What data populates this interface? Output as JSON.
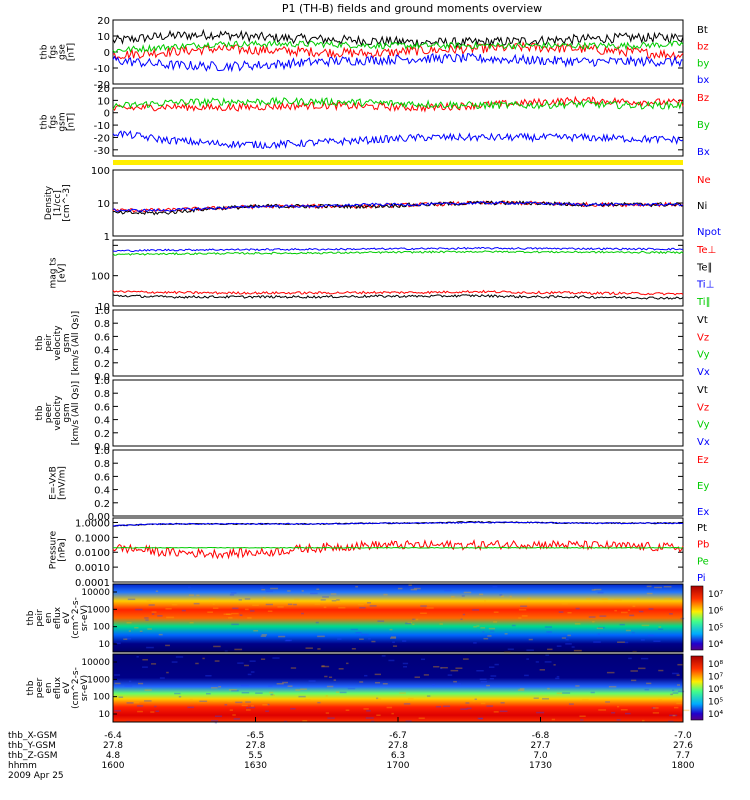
{
  "title": "P1 (TH-B) fields and ground moments overview",
  "chart_data": [
    {
      "id": "fgs_gse",
      "type": "line",
      "ylabel_lines": [
        "thb",
        "fgs",
        "gse",
        "[nT]"
      ],
      "ylim": [
        -20,
        20
      ],
      "ticks": [
        20,
        10,
        0,
        -10,
        -20
      ],
      "series": [
        {
          "name": "Bt",
          "color": "#000000",
          "base": [
            7,
            10,
            11,
            9,
            8,
            7,
            6,
            6,
            7,
            8,
            9,
            9
          ],
          "noise": 3
        },
        {
          "name": "bz",
          "color": "#ff0000",
          "base": [
            -2,
            0,
            2,
            1,
            0,
            -1,
            1,
            2,
            3,
            2,
            0,
            -2
          ],
          "noise": 3
        },
        {
          "name": "by",
          "color": "#00cc00",
          "base": [
            1,
            3,
            5,
            5,
            5,
            4,
            4,
            4,
            4,
            4,
            4,
            5
          ],
          "noise": 2
        },
        {
          "name": "bx",
          "color": "#0000ff",
          "base": [
            -5,
            -8,
            -9,
            -8,
            -6,
            -5,
            -4,
            -4,
            -5,
            -6,
            -6,
            -6
          ],
          "noise": 3
        }
      ]
    },
    {
      "id": "fgs_gsm",
      "type": "line",
      "ylabel_lines": [
        "thb",
        "fgs",
        "gsm",
        "[nT]"
      ],
      "ylim": [
        -35,
        20
      ],
      "ticks": [
        20,
        10,
        0,
        -10,
        -20,
        -30
      ],
      "series": [
        {
          "name": "Bz",
          "color": "#ff0000",
          "base": [
            3,
            5,
            4,
            5,
            6,
            5,
            4,
            6,
            8,
            10,
            9,
            8
          ],
          "noise": 3
        },
        {
          "name": "By",
          "color": "#00cc00",
          "base": [
            5,
            8,
            9,
            9,
            9,
            8,
            7,
            6,
            6,
            7,
            6,
            6
          ],
          "noise": 3
        },
        {
          "name": "Bx",
          "color": "#0000ff",
          "base": [
            -16,
            -22,
            -25,
            -26,
            -24,
            -22,
            -20,
            -20,
            -20,
            -20,
            -21,
            -22
          ],
          "noise": 3
        }
      ]
    },
    {
      "id": "density",
      "type": "line",
      "scale": "log",
      "ylabel_lines": [
        "Density",
        "[1/cc]",
        "[cm^-3]"
      ],
      "ylim": [
        1,
        100
      ],
      "ticks": [
        100,
        10,
        1
      ],
      "tick_labels": [
        "100",
        "10",
        "1"
      ],
      "series": [
        {
          "name": "Ne",
          "color": "#ff0000",
          "base": [
            6,
            6,
            7,
            8,
            8,
            8,
            9,
            10,
            10,
            9,
            9,
            9
          ],
          "noise": 0.06
        },
        {
          "name": "Ni",
          "color": "#000000",
          "base": [
            5,
            5,
            7,
            8,
            8,
            8,
            9,
            10,
            10,
            9,
            9,
            9
          ],
          "noise": 0.06
        },
        {
          "name": "Npot",
          "color": "#0000ff",
          "base": [
            6,
            6,
            7,
            8,
            8,
            9,
            9,
            10,
            10,
            9,
            9,
            9
          ],
          "noise": 0.04
        }
      ]
    },
    {
      "id": "temperature",
      "type": "line",
      "scale": "log",
      "ylabel_lines": [
        "mag ts",
        "[eV]"
      ],
      "ylim": [
        10,
        1500
      ],
      "ticks": [
        1000,
        100,
        10
      ],
      "tick_labels": [
        "",
        "100",
        "10"
      ],
      "series": [
        {
          "name": "Te⊥",
          "color": "#ff0000",
          "base": [
            30,
            28,
            27,
            27,
            27,
            28,
            28,
            30,
            28,
            27,
            26,
            25
          ],
          "noise": 0.04
        },
        {
          "name": "Te∥",
          "color": "#000000",
          "base": [
            22,
            20,
            20,
            20,
            20,
            21,
            21,
            22,
            20,
            20,
            19,
            18
          ],
          "noise": 0.04
        },
        {
          "name": "Ti⊥",
          "color": "#0000ff",
          "base": [
            650,
            700,
            720,
            730,
            740,
            760,
            780,
            800,
            790,
            780,
            760,
            750
          ],
          "noise": 0.03
        },
        {
          "name": "Ti∥",
          "color": "#00cc00",
          "base": [
            500,
            520,
            540,
            550,
            560,
            580,
            600,
            620,
            610,
            600,
            590,
            580
          ],
          "noise": 0.03
        }
      ]
    },
    {
      "id": "peir_vel",
      "type": "line",
      "empty": true,
      "ylabel_lines": [
        "thb",
        "peir",
        "velocity",
        "gsm",
        "[km/s (All Qs)]"
      ],
      "ylim": [
        0,
        1
      ],
      "ticks": [
        1.0,
        0.8,
        0.6,
        0.4,
        0.2,
        0.0
      ],
      "tick_labels": [
        "1.0",
        "0.8",
        "0.6",
        "0.4",
        "0.2",
        "0.0"
      ],
      "series": [
        {
          "name": "Vt",
          "color": "#000000"
        },
        {
          "name": "Vz",
          "color": "#ff0000"
        },
        {
          "name": "Vy",
          "color": "#00cc00"
        },
        {
          "name": "Vx",
          "color": "#0000ff"
        }
      ]
    },
    {
      "id": "peer_vel",
      "type": "line",
      "empty": true,
      "ylabel_lines": [
        "thb",
        "peer",
        "velocity",
        "gsm",
        "[km/s (All Qs)]"
      ],
      "ylim": [
        0,
        1
      ],
      "ticks": [
        1.0,
        0.8,
        0.6,
        0.4,
        0.2,
        0.0
      ],
      "tick_labels": [
        "1.0",
        "0.8",
        "0.6",
        "0.4",
        "0.2",
        "0.0"
      ],
      "series": [
        {
          "name": "Vt",
          "color": "#000000"
        },
        {
          "name": "Vz",
          "color": "#ff0000"
        },
        {
          "name": "Vy",
          "color": "#00cc00"
        },
        {
          "name": "Vx",
          "color": "#0000ff"
        }
      ]
    },
    {
      "id": "efield",
      "type": "line",
      "empty": true,
      "ylabel_lines": [
        "E=-VxB",
        "[mV/m]"
      ],
      "ylim": [
        0,
        1
      ],
      "ticks": [
        1.0,
        0.8,
        0.6,
        0.4,
        0.2,
        0.0
      ],
      "tick_labels": [
        "1.0",
        "0.8",
        "0.6",
        "0.4",
        "0.2",
        "0.00"
      ],
      "series": [
        {
          "name": "Ez",
          "color": "#ff0000"
        },
        {
          "name": "Ey",
          "color": "#00cc00"
        },
        {
          "name": "Ex",
          "color": "#0000ff"
        }
      ]
    },
    {
      "id": "pressure",
      "type": "line",
      "scale": "log",
      "ylabel_lines": [
        "Pressure",
        "[nPa]"
      ],
      "ylim": [
        0.0001,
        2
      ],
      "ticks": [
        1,
        0.1,
        0.01,
        0.001,
        0.0001
      ],
      "tick_labels": [
        "1.0000",
        "0.1000",
        "0.0100",
        "0.0010",
        "0.0001"
      ],
      "series": [
        {
          "name": "Pt",
          "color": "#000000",
          "base": [
            0.6,
            0.8,
            0.8,
            0.8,
            0.8,
            0.9,
            0.9,
            1.1,
            1.0,
            0.9,
            0.9,
            0.9
          ],
          "noise": 0.04
        },
        {
          "name": "Pb",
          "color": "#ff0000",
          "base": [
            0.02,
            0.01,
            0.008,
            0.01,
            0.02,
            0.03,
            0.03,
            0.03,
            0.035,
            0.03,
            0.025,
            0.02
          ],
          "noise": 0.3
        },
        {
          "name": "Pe",
          "color": "#00cc00",
          "base": [
            0.02,
            0.02,
            0.02,
            0.02,
            0.02,
            0.02,
            0.02,
            0.02,
            0.02,
            0.02,
            0.02,
            0.02
          ],
          "noise": 0.02
        },
        {
          "name": "Pi",
          "color": "#0000ff",
          "base": [
            0.6,
            0.8,
            0.8,
            0.8,
            0.8,
            0.9,
            0.9,
            1.0,
            1.0,
            0.9,
            0.9,
            0.9
          ],
          "noise": 0.04
        }
      ]
    },
    {
      "id": "peir_spec",
      "type": "heatmap",
      "ylabel_lines": [
        "thb",
        "peir",
        "en",
        "eflux",
        "eV",
        "(cm^2-s-",
        "sr-eV)"
      ],
      "yticks": [
        "10000",
        "1000",
        "100",
        "10"
      ],
      "colorbar_labels": [
        "10⁷",
        "10⁶",
        "10⁵",
        "10⁴"
      ]
    },
    {
      "id": "peer_spec",
      "type": "heatmap",
      "ylabel_lines": [
        "thb",
        "peer",
        "en",
        "eflux",
        "eV",
        "(cm^2-s-",
        "sr-eV)"
      ],
      "yticks": [
        "10000",
        "1000",
        "100",
        "10"
      ],
      "colorbar_labels": [
        "10⁸",
        "10⁷",
        "10⁶",
        "10⁵",
        "10⁴"
      ]
    }
  ],
  "xaxis": {
    "time_ticks": [
      "1600",
      "1630",
      "1700",
      "1730",
      "1800"
    ],
    "rows": [
      {
        "label": "thb_X-GSM",
        "values": [
          "-6.4",
          "-6.5",
          "-6.7",
          "-6.8",
          "-7.0"
        ]
      },
      {
        "label": "thb_Y-GSM",
        "values": [
          "27.8",
          "27.8",
          "27.8",
          "27.7",
          "27.6"
        ]
      },
      {
        "label": "thb_Z-GSM",
        "values": [
          "4.8",
          "5.5",
          "6.3",
          "7.0",
          "7.7"
        ]
      },
      {
        "label": "hhmm",
        "values": [
          "1600",
          "1630",
          "1700",
          "1730",
          "1800"
        ]
      }
    ],
    "date": "2009 Apr 25"
  },
  "colors": {
    "flag_bar": "#ffee00"
  }
}
